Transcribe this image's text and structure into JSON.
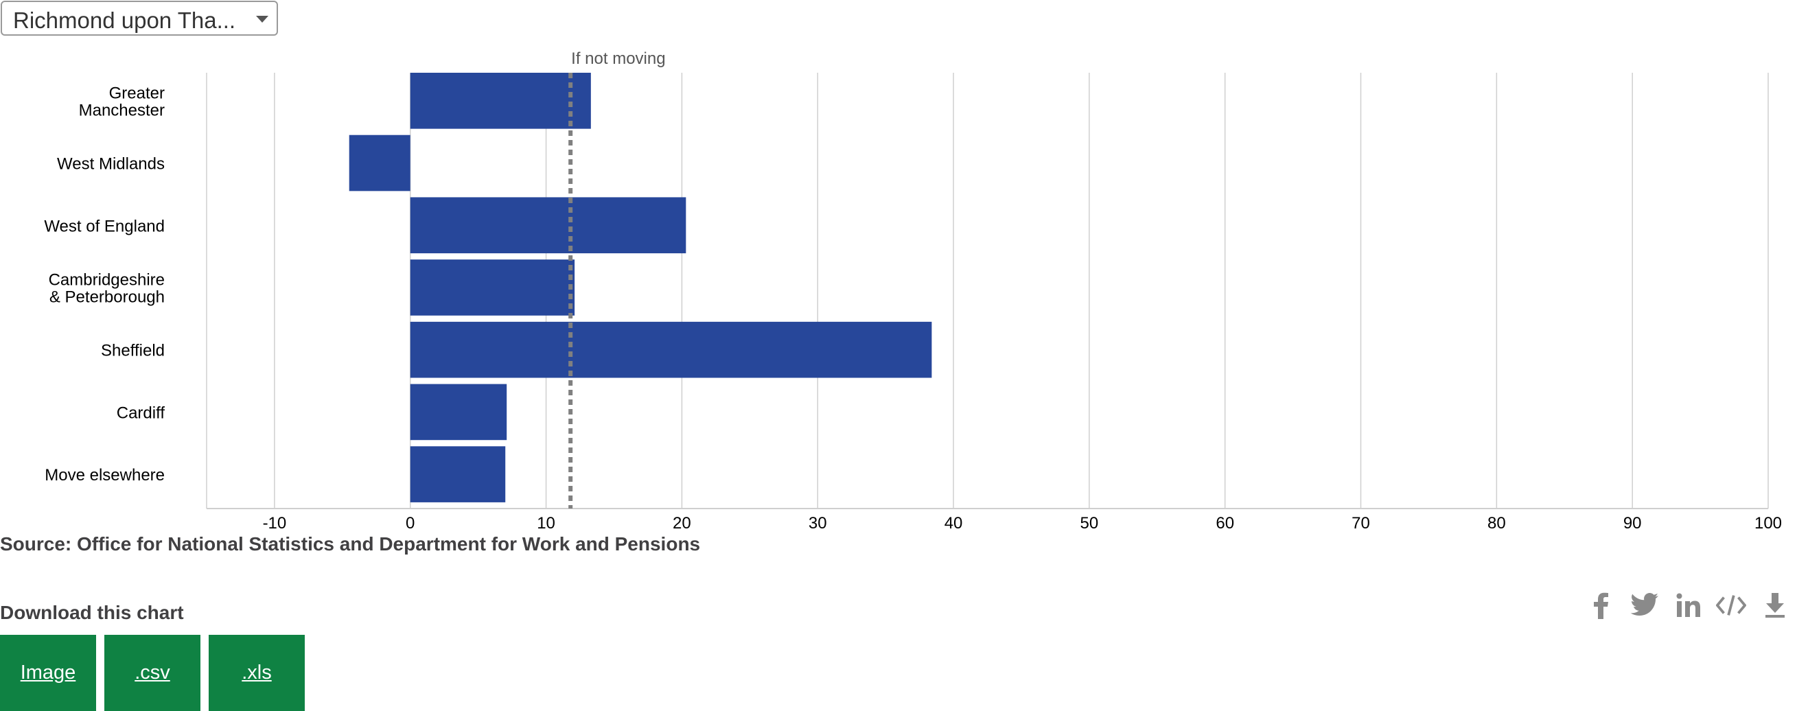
{
  "selector": {
    "value": "Richmond upon Tha..."
  },
  "chart_data": {
    "type": "bar",
    "orientation": "horizontal",
    "categories": [
      [
        "Greater",
        "Manchester"
      ],
      [
        "West Midlands"
      ],
      [
        "West of England"
      ],
      [
        "Cambridgeshire",
        "& Peterborough"
      ],
      [
        "Sheffield"
      ],
      [
        "Cardiff"
      ],
      [
        "Move elsewhere"
      ]
    ],
    "values": [
      13.3,
      -4.5,
      20.3,
      12.1,
      38.4,
      7.1,
      7.0
    ],
    "xlim": [
      -15,
      100
    ],
    "xticks": [
      -10,
      0,
      10,
      20,
      30,
      40,
      50,
      60,
      70,
      80,
      90,
      100
    ],
    "reference_line": {
      "label": "If not moving",
      "value": 11.8
    },
    "bar_color": "#27479a",
    "grid": true
  },
  "source": "Source: Office for National Statistics and Department for Work and Pensions",
  "download": {
    "title": "Download this chart",
    "buttons": [
      "Image",
      ".csv",
      ".xls"
    ],
    "button_color": "#0f8243"
  },
  "share_icons": [
    "facebook-icon",
    "twitter-icon",
    "linkedin-icon",
    "embed-icon",
    "download-icon"
  ]
}
